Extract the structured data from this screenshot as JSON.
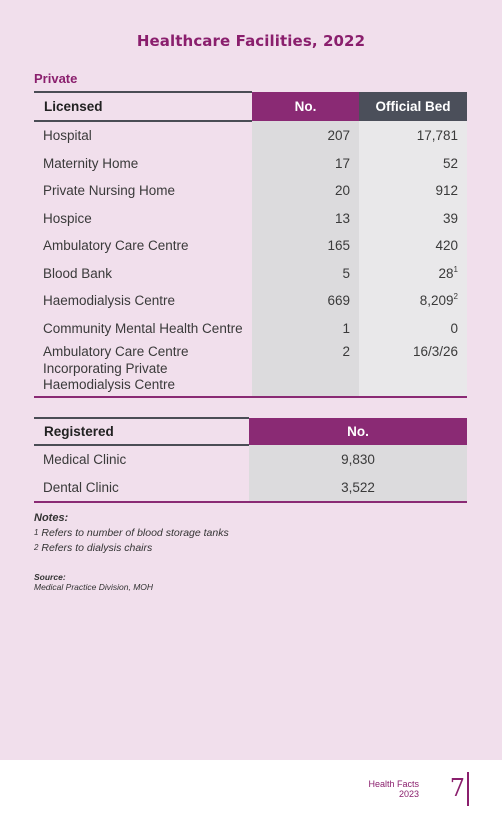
{
  "title": "Healthcare Facilities,  2022",
  "section": "Private",
  "licensed": {
    "headers": {
      "label": "Licensed",
      "no": "No.",
      "bed": "Official Bed"
    },
    "rows": [
      {
        "label": "Hospital",
        "no": "207",
        "bed": "17,781",
        "sup": ""
      },
      {
        "label": "Maternity Home",
        "no": "17",
        "bed": "52",
        "sup": ""
      },
      {
        "label": "Private Nursing Home",
        "no": "20",
        "bed": "912",
        "sup": ""
      },
      {
        "label": "Hospice",
        "no": "13",
        "bed": "39",
        "sup": ""
      },
      {
        "label": "Ambulatory Care Centre",
        "no": "165",
        "bed": "420",
        "sup": ""
      },
      {
        "label": "Blood Bank",
        "no": "5",
        "bed": "28",
        "sup": "1"
      },
      {
        "label": "Haemodialysis Centre",
        "no": "669",
        "bed": "8,209",
        "sup": "2"
      },
      {
        "label": "Community Mental Health Centre",
        "no": "1",
        "bed": "0",
        "sup": ""
      },
      {
        "label": "Ambulatory Care Centre Incorporating Private Haemodialysis Centre",
        "no": "2",
        "bed": "16/3/26",
        "sup": ""
      }
    ]
  },
  "registered": {
    "headers": {
      "label": "Registered",
      "no": "No."
    },
    "rows": [
      {
        "label": "Medical Clinic",
        "no": "9,830"
      },
      {
        "label": "Dental Clinic",
        "no": "3,522"
      }
    ]
  },
  "notes": {
    "title": "Notes:",
    "items": [
      {
        "sup": "1",
        "text": "Refers to number of blood storage tanks"
      },
      {
        "sup": "2",
        "text": "Refers to dialysis chairs"
      }
    ]
  },
  "source": {
    "title": "Source:",
    "text": "Medical Practice Division, MOH"
  },
  "footer": {
    "line1": "Health Facts",
    "line2": "2023",
    "page": "7"
  },
  "colors": {
    "accent": "#8a1f6d",
    "header_dark": "#4b4f5a",
    "page_bg": "#f1dfec"
  }
}
